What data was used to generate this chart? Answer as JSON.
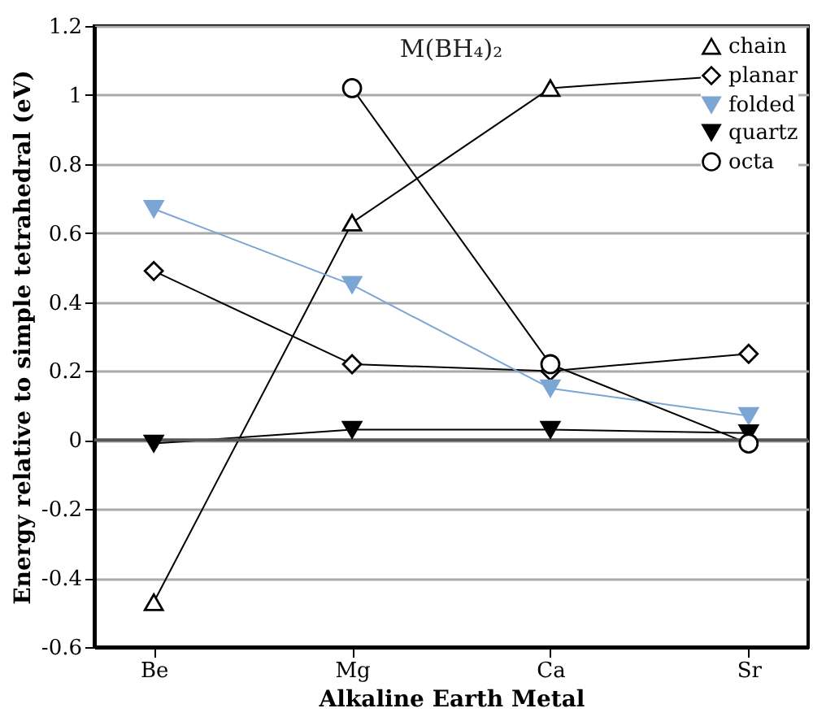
{
  "chart_data": {
    "type": "line",
    "title": "M(BH₄)₂",
    "xlabel": "Alkaline Earth Metal",
    "ylabel": "Energy relative to simple tetrahedral (eV)",
    "categories": [
      "Be",
      "Mg",
      "Ca",
      "Sr"
    ],
    "series": [
      {
        "name": "chain",
        "color": "#000000",
        "marker": "triangle",
        "values": [
          -0.47,
          0.63,
          1.02,
          1.06
        ]
      },
      {
        "name": "planar",
        "color": "#000000",
        "marker": "diamond",
        "values": [
          0.49,
          0.22,
          0.2,
          0.25
        ]
      },
      {
        "name": "folded",
        "color": "#7ba6d4",
        "marker": "triangle-down",
        "values": [
          0.67,
          0.45,
          0.15,
          0.07
        ]
      },
      {
        "name": "quartz",
        "color": "#000000",
        "marker": "triangle-down",
        "values": [
          -0.01,
          0.03,
          0.03,
          0.02
        ]
      },
      {
        "name": "octa",
        "color": "#000000",
        "marker": "circle",
        "values": [
          null,
          1.02,
          0.22,
          -0.01
        ]
      }
    ],
    "ylim": [
      -0.6,
      1.2
    ],
    "yticks": [
      -0.6,
      -0.4,
      -0.2,
      0,
      0.2,
      0.4,
      0.6,
      0.8,
      1,
      1.2
    ],
    "ref_lines": [
      {
        "axis": "y",
        "value": 0,
        "color": "#555555"
      }
    ],
    "grid": "y",
    "legend": "top right",
    "line_style": "solid"
  }
}
